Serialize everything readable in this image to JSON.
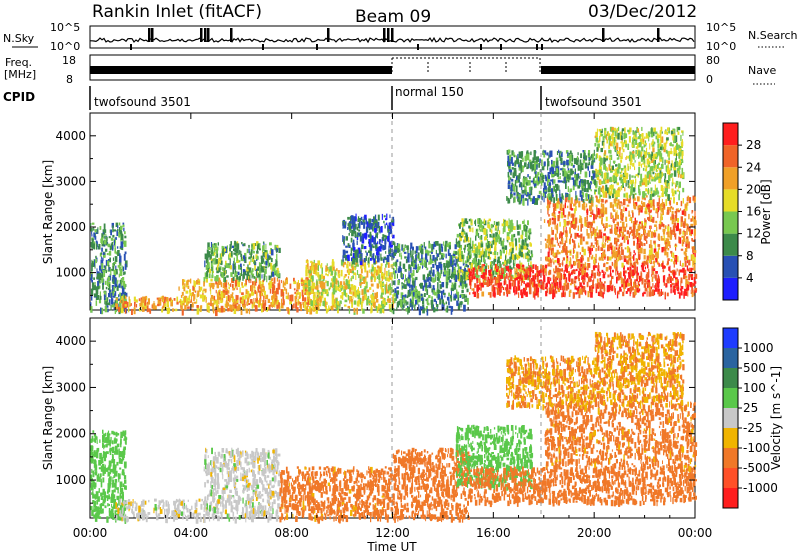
{
  "header": {
    "station": "Rankin Inlet (fitACF)",
    "beam": "Beam 09",
    "date": "03/Dec/2012"
  },
  "noise_panel": {
    "left_label": "N.Sky",
    "right_label": "N.Search",
    "left_ticks": [
      "10^5",
      "10^0"
    ],
    "right_ticks": [
      "10^5",
      "10^0"
    ]
  },
  "freq_panel": {
    "left_label_line1": "Freq.",
    "left_label_line2": "[MHz]",
    "right_label": "Nave",
    "left_ticks": [
      "18",
      "8"
    ],
    "right_ticks": [
      "80",
      "0"
    ]
  },
  "cpid": {
    "label": "CPID",
    "segments": [
      {
        "name": "twofsound 3501",
        "start_hour": 0,
        "end_hour": 12
      },
      {
        "name": "normal 150",
        "start_hour": 12,
        "end_hour": 18
      },
      {
        "name": "twofsound 3501",
        "start_hour": 18,
        "end_hour": 24
      }
    ]
  },
  "chart_data": [
    {
      "type": "heatmap",
      "parameter": "Power",
      "ylabel": "Slant Range [km]",
      "xlabel": "Time UT",
      "xlim": [
        0,
        24
      ],
      "ylim": [
        180,
        4500
      ],
      "x_ticks": [
        "00:00",
        "04:00",
        "08:00",
        "12:00",
        "16:00",
        "20:00",
        "00:00"
      ],
      "y_ticks": [
        1000,
        2000,
        3000,
        4000
      ],
      "colorbar": {
        "label": "Power [dB]",
        "ticks": [
          4,
          8,
          12,
          16,
          20,
          24,
          28
        ],
        "range": [
          0,
          32
        ],
        "colors": [
          "#1e1eff",
          "#2850b4",
          "#3c8a4a",
          "#78c850",
          "#e6dc28",
          "#f0a028",
          "#f06428",
          "#ff1e1e"
        ]
      },
      "regions": [
        {
          "t0": 0.0,
          "t1": 1.4,
          "r0": 200,
          "r1": 2100,
          "value": 10
        },
        {
          "t0": 1.0,
          "t1": 3.5,
          "r0": 200,
          "r1": 500,
          "value": 22
        },
        {
          "t0": 3.5,
          "t1": 9.0,
          "r0": 200,
          "r1": 900,
          "value": 22
        },
        {
          "t0": 4.5,
          "t1": 7.5,
          "r0": 900,
          "r1": 1700,
          "value": 12
        },
        {
          "t0": 8.5,
          "t1": 12.0,
          "r0": 200,
          "r1": 1300,
          "value": 18
        },
        {
          "t0": 10.0,
          "t1": 12.0,
          "r0": 1300,
          "r1": 2300,
          "value": 7
        },
        {
          "t0": 12.0,
          "t1": 15.0,
          "r0": 200,
          "r1": 1700,
          "value": 10
        },
        {
          "t0": 14.5,
          "t1": 17.5,
          "r0": 900,
          "r1": 2200,
          "value": 14
        },
        {
          "t0": 15.0,
          "t1": 24.0,
          "r0": 550,
          "r1": 1200,
          "value": 28
        },
        {
          "t0": 18.0,
          "t1": 24.0,
          "r0": 1200,
          "r1": 2700,
          "value": 24
        },
        {
          "t0": 20.0,
          "t1": 23.5,
          "r0": 2700,
          "r1": 4200,
          "value": 16
        },
        {
          "t0": 16.5,
          "t1": 20.0,
          "r0": 2600,
          "r1": 3700,
          "value": 10
        }
      ]
    },
    {
      "type": "heatmap",
      "parameter": "Velocity",
      "ylabel": "Slant Range [km]",
      "xlabel": "Time UT",
      "xlim": [
        0,
        24
      ],
      "ylim": [
        180,
        4500
      ],
      "x_ticks": [
        "00:00",
        "04:00",
        "08:00",
        "12:00",
        "16:00",
        "20:00",
        "00:00"
      ],
      "y_ticks": [
        1000,
        2000,
        3000,
        4000
      ],
      "colorbar": {
        "label": "Velocity [m s^-1]",
        "ticks": [
          "1000",
          "500",
          "100",
          "25",
          "-25",
          "-100",
          "-500",
          "-1000"
        ],
        "colors": [
          "#1e3cff",
          "#2a64a0",
          "#3c8a4a",
          "#5ac84a",
          "#c8c8c8",
          "#f0b400",
          "#f07828",
          "#ff5028",
          "#ff1e1e"
        ]
      },
      "regions": [
        {
          "t0": 0.0,
          "t1": 1.4,
          "r0": 200,
          "r1": 2100,
          "value": 60
        },
        {
          "t0": 1.0,
          "t1": 4.5,
          "r0": 200,
          "r1": 600,
          "value": 0
        },
        {
          "t0": 4.5,
          "t1": 7.5,
          "r0": 200,
          "r1": 1700,
          "value": 0
        },
        {
          "t0": 7.5,
          "t1": 12.0,
          "r0": 200,
          "r1": 1300,
          "value": -150
        },
        {
          "t0": 12.0,
          "t1": 15.0,
          "r0": 200,
          "r1": 1700,
          "value": -300
        },
        {
          "t0": 14.5,
          "t1": 17.5,
          "r0": 900,
          "r1": 2200,
          "value": 60
        },
        {
          "t0": 15.0,
          "t1": 24.0,
          "r0": 550,
          "r1": 1300,
          "value": -300
        },
        {
          "t0": 18.0,
          "t1": 24.0,
          "r0": 1300,
          "r1": 2700,
          "value": -150
        },
        {
          "t0": 20.0,
          "t1": 23.5,
          "r0": 2700,
          "r1": 4200,
          "value": -100
        },
        {
          "t0": 16.5,
          "t1": 20.0,
          "r0": 2600,
          "r1": 3700,
          "value": -100
        }
      ]
    }
  ]
}
